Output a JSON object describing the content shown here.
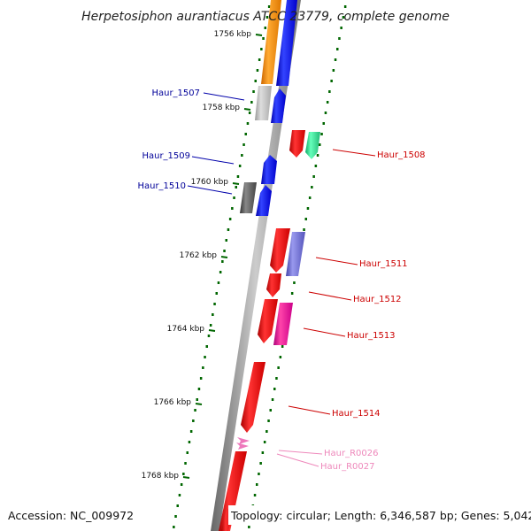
{
  "title": "Herpetosiphon aurantiacus ATCC 23779, complete genome",
  "footer": {
    "accession": "Accession: NC_009972",
    "topology": "Topology: circular; Length: 6,346,587 bp; Genes: 5,042"
  },
  "ticks": [
    "1756 kbp",
    "1758 kbp",
    "1760 kbp",
    "1762 kbp",
    "1764 kbp",
    "1766 kbp",
    "1768 kbp"
  ],
  "genes_left": [
    {
      "label": "Haur_1507",
      "color": "#000099"
    },
    {
      "label": "Haur_1509",
      "color": "#000099"
    },
    {
      "label": "Haur_1510",
      "color": "#000099"
    }
  ],
  "genes_right": [
    {
      "label": "Haur_1508",
      "color": "#cc0000"
    },
    {
      "label": "Haur_1511",
      "color": "#cc0000"
    },
    {
      "label": "Haur_1512",
      "color": "#cc0000"
    },
    {
      "label": "Haur_1513",
      "color": "#cc0000"
    },
    {
      "label": "Haur_1514",
      "color": "#cc0000"
    },
    {
      "label": "Haur_R0026",
      "color": "#ee88bb"
    },
    {
      "label": "Haur_R0027",
      "color": "#ee88bb"
    }
  ],
  "colors": {
    "backbone": "#888888",
    "forward_cds": "#ff0000",
    "reverse_cds": "#0000ff",
    "tick_green": "#006600"
  }
}
